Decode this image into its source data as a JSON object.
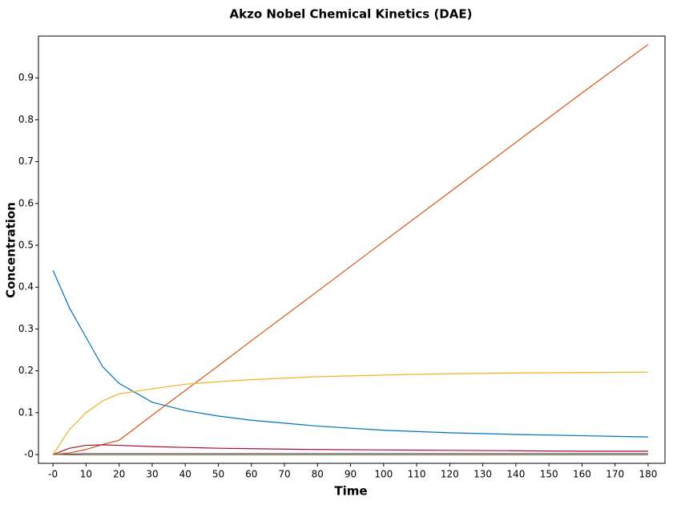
{
  "chart_data": {
    "type": "line",
    "title": "Akzo Nobel Chemical Kinetics (DAE)",
    "x_label": "Time",
    "y_label": "Concentration",
    "x": [
      0,
      5,
      10,
      15,
      20,
      30,
      40,
      50,
      60,
      80,
      100,
      120,
      140,
      160,
      180
    ],
    "series": [
      {
        "color": "#0072bd",
        "values": [
          0.44,
          0.35,
          0.28,
          0.21,
          0.17,
          0.125,
          0.105,
          0.092,
          0.082,
          0.068,
          0.058,
          0.052,
          0.048,
          0.045,
          0.042
        ]
      },
      {
        "color": "#d95319",
        "values": [
          0,
          0.004,
          0.012,
          0.024,
          0.034,
          0.094,
          0.153,
          0.212,
          0.272,
          0.39,
          0.509,
          0.627,
          0.746,
          0.864,
          0.98
        ]
      },
      {
        "color": "#edb120",
        "values": [
          0,
          0.06,
          0.1,
          0.128,
          0.145,
          0.157,
          0.168,
          0.174,
          0.179,
          0.186,
          0.19,
          0.193,
          0.195,
          0.196,
          0.197
        ]
      },
      {
        "color": "#a2142f",
        "values": [
          0,
          0.015,
          0.022,
          0.023,
          0.022,
          0.019,
          0.017,
          0.015,
          0.014,
          0.012,
          0.011,
          0.01,
          0.009,
          0.008,
          0.008
        ]
      },
      {
        "color": "#7e2f8e",
        "values": [
          0,
          0.001,
          0.002,
          0.002,
          0.002,
          0.002,
          0.002,
          0.002,
          0.002,
          0.002,
          0.002,
          0.002,
          0.002,
          0.002,
          0.002
        ]
      },
      {
        "color": "#77ac30",
        "values": [
          0,
          -0.001,
          -0.001,
          -0.001,
          -0.001,
          -0.001,
          -0.001,
          -0.001,
          -0.001,
          -0.001,
          -0.001,
          -0.001,
          -0.001,
          -0.001,
          -0.001
        ]
      }
    ],
    "xlim": [
      -4.4,
      185.1
    ],
    "ylim": [
      -0.021,
      1.0
    ],
    "xticks": [
      {
        "value": 0,
        "label": "-0"
      },
      10,
      20,
      30,
      40,
      50,
      60,
      70,
      80,
      90,
      100,
      110,
      120,
      130,
      140,
      150,
      160,
      170,
      180
    ],
    "yticks": [
      {
        "value": 0,
        "label": "-0"
      },
      0.1,
      0.2,
      0.3,
      0.4,
      0.5,
      0.6,
      0.7,
      0.8,
      0.9
    ],
    "grid": false
  }
}
